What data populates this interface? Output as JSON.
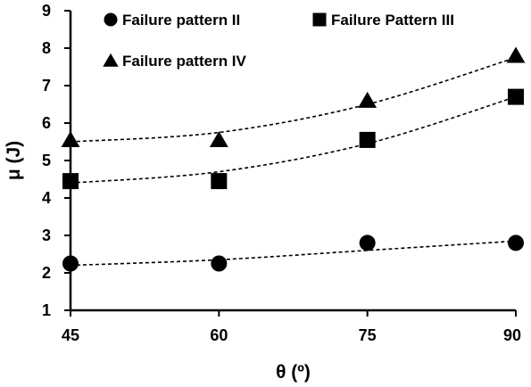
{
  "chart_data": {
    "type": "scatter",
    "title": "",
    "xlabel": "θ (º)",
    "ylabel": "μ (J)",
    "x": [
      45,
      60,
      75,
      90
    ],
    "xlim": [
      45,
      90
    ],
    "ylim": [
      1,
      9
    ],
    "xticks": [
      "45",
      "60",
      "75",
      "90"
    ],
    "yticks": [
      "1",
      "2",
      "3",
      "4",
      "5",
      "6",
      "7",
      "8",
      "9"
    ],
    "grid": false,
    "legend_position": "top",
    "series": [
      {
        "name": "Failure pattern II",
        "marker": "circle",
        "values": [
          2.25,
          2.25,
          2.8,
          2.8
        ],
        "trend": [
          2.2,
          2.35,
          2.6,
          2.85
        ],
        "color": "#000000"
      },
      {
        "name": "Failure Pattern III",
        "marker": "square",
        "values": [
          4.45,
          4.45,
          5.55,
          6.7
        ],
        "trend": [
          4.4,
          4.7,
          5.45,
          6.7
        ],
        "color": "#000000"
      },
      {
        "name": "Failure pattern IV",
        "marker": "triangle",
        "values": [
          5.55,
          5.55,
          6.6,
          7.8
        ],
        "trend": [
          5.5,
          5.75,
          6.5,
          7.75
        ],
        "color": "#000000"
      }
    ]
  }
}
